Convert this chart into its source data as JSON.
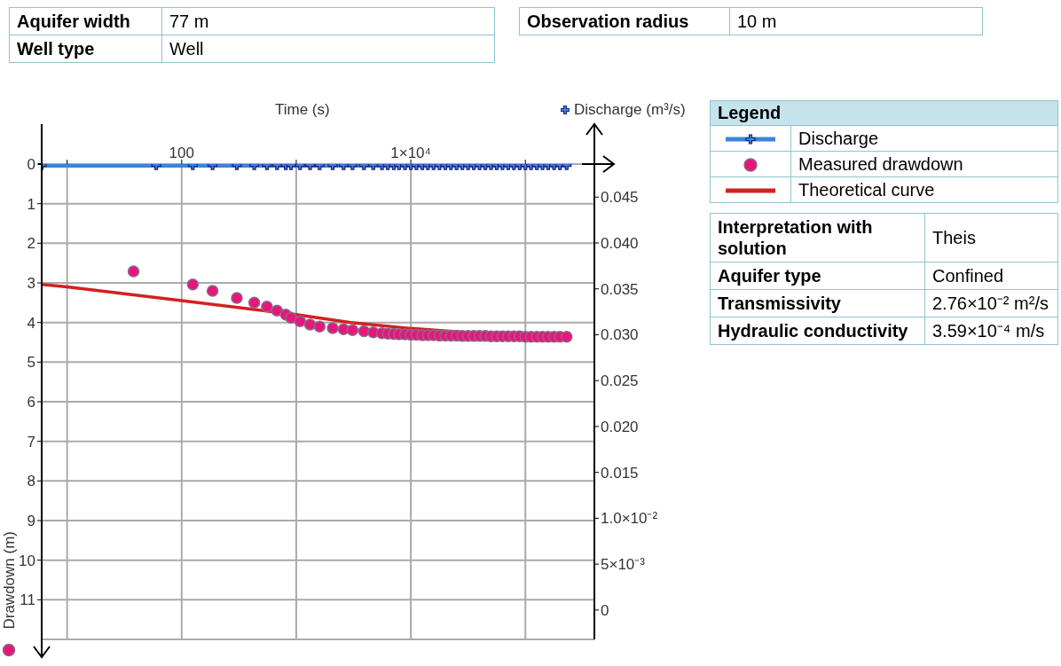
{
  "chart_data": [
    {
      "type": "other",
      "annotations": [
        "Aquifer width",
        "77 m",
        "Well type",
        "Well"
      ]
    },
    {
      "type": "other",
      "annotations": [
        "Observation radius",
        "10 m"
      ]
    },
    {
      "type": "line",
      "xlabel": "Time (s)",
      "ylabel": "Drawdown (m)",
      "y2label": "Discharge (m³/s)",
      "legend_title": "Legend",
      "legend": "right",
      "grid": true,
      "log": "x",
      "xlim": [
        6,
        400000
      ],
      "xticks": [
        {
          "value": 10,
          "label": null
        },
        {
          "value": 100,
          "label": "100"
        },
        {
          "value": 1000,
          "label": null
        },
        {
          "value": 10000,
          "label": "1×10⁴"
        },
        {
          "value": 100000,
          "label": null
        }
      ],
      "ylim": [
        12,
        0
      ],
      "yticks": [
        0,
        1,
        2,
        3,
        4,
        5,
        6,
        7,
        8,
        9,
        10,
        11
      ],
      "y2lim": [
        -0.0032,
        0.0486
      ],
      "y2ticks": [
        0,
        {
          "value": 0.005,
          "label": "5×10⁻³"
        },
        {
          "value": 0.01,
          "label": "1.0×10⁻²"
        },
        0.015,
        {
          "value": 0.02,
          "label": "0.020"
        },
        0.025,
        {
          "value": 0.03,
          "label": "0.030"
        },
        0.035,
        {
          "value": 0.04,
          "label": "0.040"
        },
        0.045
      ],
      "series": [
        {
          "name": "Discharge",
          "type": "line",
          "axis": "y2",
          "marker": "cross",
          "color": "#3a86d8",
          "x": [
            6,
            60,
            125,
            186,
            303,
            430,
            555,
            680,
            810,
            900,
            1080,
            1320,
            1600,
            2080,
            2590,
            3100,
            3900,
            4700,
            5600,
            6300,
            7100,
            7900,
            8900,
            10000,
            11200,
            12600,
            14100,
            15800,
            17800,
            20000,
            22400,
            25100,
            28200,
            31600,
            35500,
            39800,
            44700,
            50100,
            56200,
            63100,
            70800,
            79400,
            89100,
            100000,
            112000,
            126000,
            141000,
            158000,
            178000,
            200000,
            229000
          ],
          "values": [
            0.0485,
            0.0485,
            0.0485,
            0.0485,
            0.0485,
            0.0485,
            0.0485,
            0.0485,
            0.0485,
            0.0485,
            0.0485,
            0.0485,
            0.0485,
            0.0485,
            0.0485,
            0.0485,
            0.0485,
            0.0485,
            0.0485,
            0.0485,
            0.0485,
            0.0485,
            0.0485,
            0.0485,
            0.0485,
            0.0485,
            0.0485,
            0.0485,
            0.0485,
            0.0485,
            0.0485,
            0.0485,
            0.0485,
            0.0485,
            0.0485,
            0.0485,
            0.0485,
            0.0485,
            0.0485,
            0.0485,
            0.0485,
            0.0485,
            0.0485,
            0.0485,
            0.0485,
            0.0485,
            0.0485,
            0.0485,
            0.0485,
            0.0485,
            0.0485
          ]
        },
        {
          "name": "Measured drawdown",
          "type": "scatter",
          "marker": "circle",
          "color": "#e8157a",
          "x": [
            38,
            125,
            186,
            303,
            430,
            555,
            680,
            810,
            900,
            1080,
            1320,
            1600,
            2080,
            2590,
            3100,
            3900,
            4700,
            5600,
            6300,
            7100,
            7900,
            8900,
            10000,
            11200,
            12600,
            14100,
            15800,
            17800,
            20000,
            22400,
            25100,
            28200,
            31600,
            35500,
            39800,
            44700,
            50100,
            56200,
            63100,
            70800,
            79400,
            89100,
            100000,
            112000,
            126000,
            141000,
            158000,
            178000,
            200000,
            229000
          ],
          "values": [
            2.71,
            3.04,
            3.2,
            3.38,
            3.5,
            3.6,
            3.7,
            3.8,
            3.88,
            3.97,
            4.05,
            4.1,
            4.14,
            4.17,
            4.19,
            4.22,
            4.25,
            4.27,
            4.28,
            4.29,
            4.3,
            4.3,
            4.31,
            4.31,
            4.32,
            4.32,
            4.32,
            4.33,
            4.33,
            4.33,
            4.33,
            4.34,
            4.34,
            4.34,
            4.34,
            4.34,
            4.35,
            4.35,
            4.35,
            4.35,
            4.35,
            4.35,
            4.36,
            4.36,
            4.36,
            4.36,
            4.36,
            4.36,
            4.36,
            4.36
          ]
        },
        {
          "name": "Theoretical curve",
          "type": "line",
          "marker": "none",
          "color": "#d42020",
          "x": [
            6,
            10,
            100,
            1000,
            3000,
            10000,
            30000,
            100000,
            229000
          ],
          "values": [
            3.04,
            3.1,
            3.45,
            3.8,
            4.0,
            4.15,
            4.25,
            4.3,
            4.32
          ]
        }
      ]
    },
    {
      "type": "other",
      "annotations": [
        "Interpretation with solution",
        "Theis",
        "Aquifer type",
        "Confined",
        "Transmissivity",
        "2.76×10⁻² m²/s",
        "Hydraulic conductivity",
        "3.59×10⁻⁴ m/s"
      ]
    }
  ]
}
